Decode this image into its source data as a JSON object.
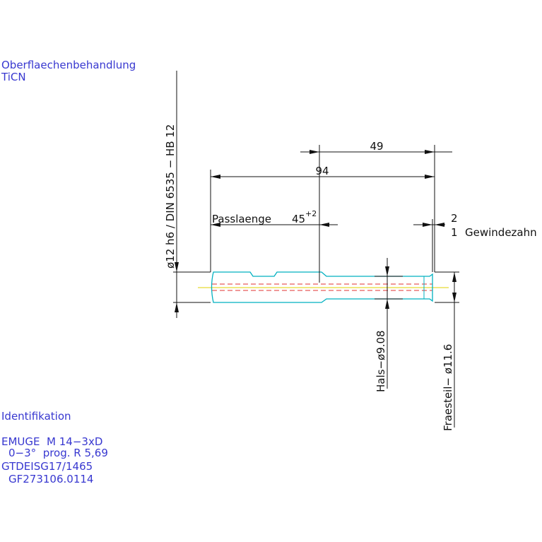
{
  "surface": {
    "title": "Oberflaechenbehandlung",
    "value": "TiCN"
  },
  "identification": {
    "title": "Identifikation",
    "lines": [
      "EMUGE  M 14−3xD",
      "0−3°  prog. R 5,69",
      "GTDEISG17/1465",
      "GF273106.0114"
    ]
  },
  "dimensions": {
    "overall": "94",
    "thread_part": "49",
    "fit_label": "Passlaenge",
    "fit_length": "45",
    "fit_tolerance": "+2",
    "thread_top": "2",
    "thread_bottom": "1",
    "thread_label": "Gewindezahn",
    "shank": "ø12 h6 / DIN 6535 − HB 12",
    "neck": "Hals−ø9.08",
    "cutter": "Fraesteil− ø11.6"
  }
}
